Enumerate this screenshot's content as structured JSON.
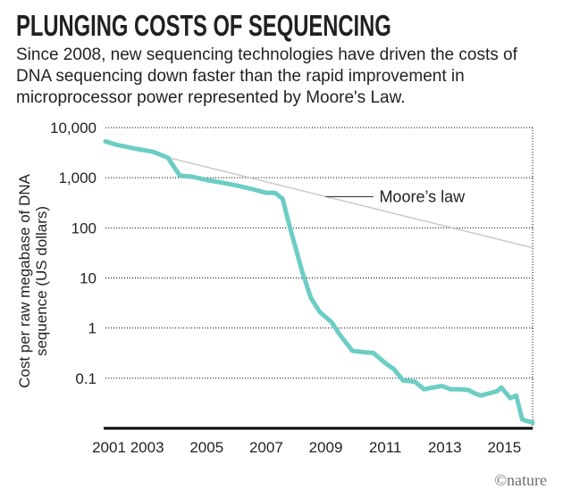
{
  "title": "PLUNGING COSTS OF SEQUENCING",
  "subtitle": "Since 2008, new sequencing technologies have driven the costs of DNA sequencing down faster than the rapid improvement in microprocessor power represented by Moore's Law.",
  "credit": "©nature",
  "colors": {
    "sequencing": "#6ccdc4",
    "moore": "#c8c8c8",
    "grid": "#000000",
    "axis": "#000000"
  },
  "chart_data": {
    "type": "line",
    "title": "PLUNGING COSTS OF SEQUENCING",
    "ylabel": "Cost per raw megabase of DNA sequence (US dollars)",
    "xlabel": "",
    "yscale": "log",
    "ylim": [
      0.01,
      10000
    ],
    "xlim": [
      2001.6,
      2015.95
    ],
    "grid": true,
    "xticks": [
      2001,
      2003,
      2005,
      2007,
      2009,
      2011,
      2013,
      2015
    ],
    "yticks": [
      {
        "value": 10000,
        "label": "10,000"
      },
      {
        "value": 1000,
        "label": "1,000"
      },
      {
        "value": 100,
        "label": "100"
      },
      {
        "value": 10,
        "label": "10"
      },
      {
        "value": 1,
        "label": "1"
      },
      {
        "value": 0.1,
        "label": "0.1"
      }
    ],
    "annotation": "Moore’s law",
    "series": [
      {
        "name": "Moore’s law",
        "x": [
          2003.2,
          2015.95
        ],
        "y": [
          3000,
          40
        ]
      },
      {
        "name": "",
        "x": [
          2001.6,
          2002.0,
          2002.6,
          2003.2,
          2003.7,
          2004.1,
          2004.5,
          2005.0,
          2005.5,
          2006.0,
          2006.5,
          2007.0,
          2007.3,
          2007.55,
          2007.8,
          2008.2,
          2008.5,
          2008.8,
          2009.2,
          2009.5,
          2009.9,
          2010.3,
          2010.6,
          2011.0,
          2011.3,
          2011.6,
          2012.0,
          2012.3,
          2012.6,
          2012.9,
          2013.2,
          2013.5,
          2013.8,
          2014.0,
          2014.2,
          2014.5,
          2014.75,
          2014.9,
          2015.2,
          2015.4,
          2015.6,
          2015.95
        ],
        "y": [
          5300,
          4500,
          3800,
          3300,
          2500,
          1100,
          1050,
          900,
          800,
          700,
          600,
          500,
          500,
          380,
          100,
          14,
          4,
          2.1,
          1.3,
          0.7,
          0.35,
          0.33,
          0.32,
          0.2,
          0.15,
          0.09,
          0.085,
          0.06,
          0.065,
          0.07,
          0.06,
          0.06,
          0.058,
          0.05,
          0.045,
          0.05,
          0.055,
          0.065,
          0.04,
          0.045,
          0.015,
          0.013
        ]
      }
    ]
  }
}
